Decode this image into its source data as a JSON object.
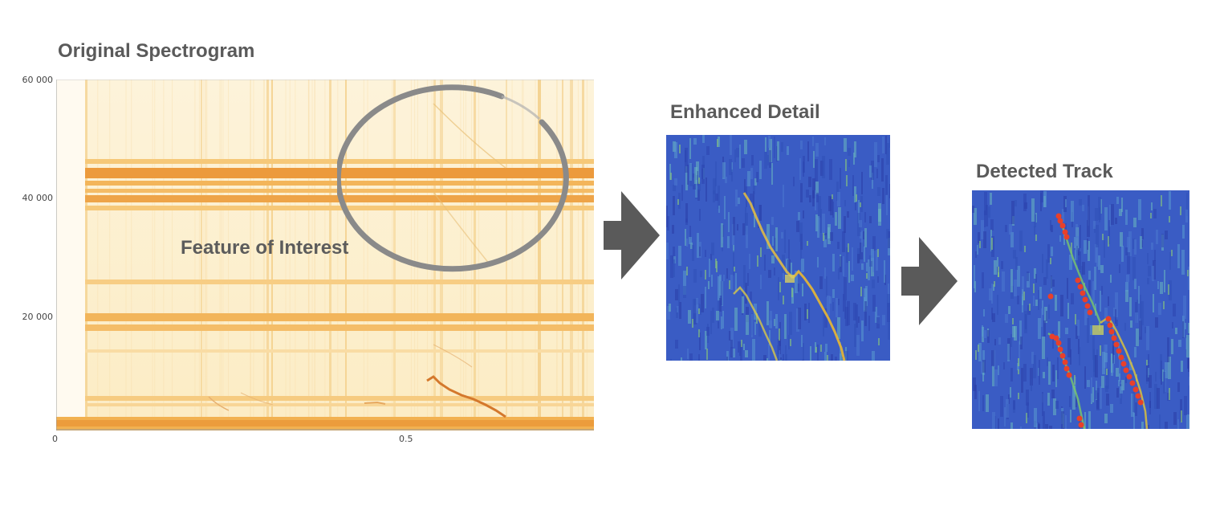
{
  "titles": {
    "original": "Original Spectrogram",
    "enhanced": "Enhanced Detail",
    "detected": "Detected Track"
  },
  "annotation": "Feature of Interest",
  "axes": {
    "y_ticks": [
      "60 000",
      "40 000",
      "20 000"
    ],
    "x_ticks": [
      "0",
      "0.5"
    ]
  },
  "colors": {
    "spectrogram_base": "#fdf0cf",
    "spectrogram_band": "#f0a040",
    "detail_base": "#3a5fc8",
    "track_line": "#e8b830",
    "detection_marker": "#e8402a",
    "arrow": "#5a5a5a",
    "circle": "#8a8a8a"
  },
  "icons": {
    "arrow1": "right-arrow-icon",
    "arrow2": "right-arrow-icon"
  }
}
